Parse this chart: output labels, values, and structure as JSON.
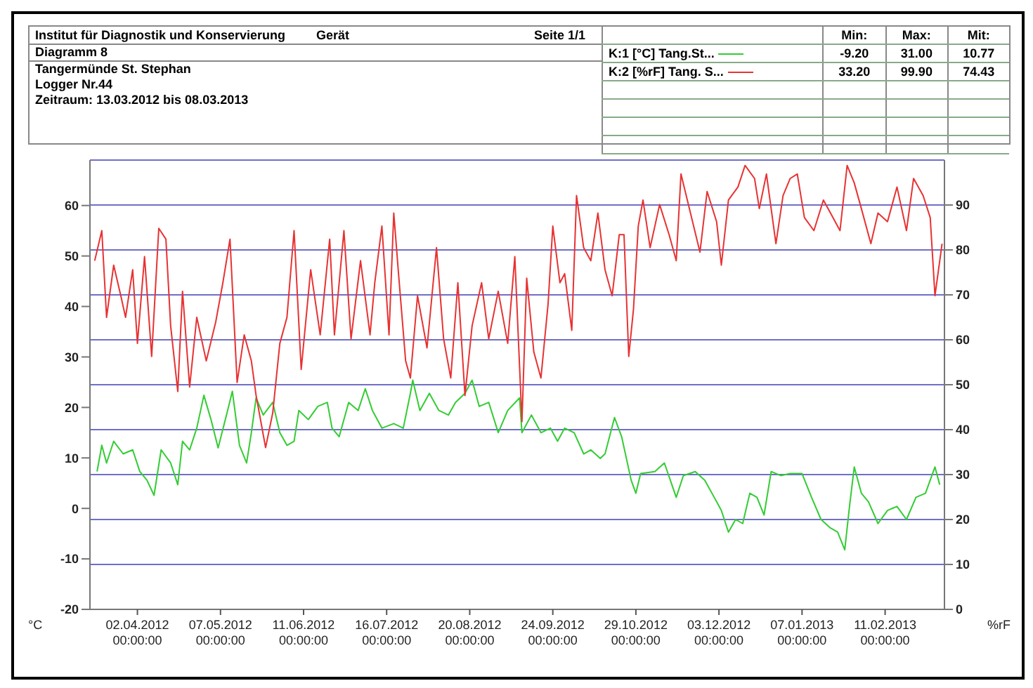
{
  "chart_data": {
    "type": "line",
    "title": "Diagramm 8",
    "annotations": [
      "Institut für Diagnostik und Konservierung",
      "Gerät",
      "Seite 1/1",
      "Tangermünde St. Stephan",
      "Logger Nr.44",
      "Zeitraum: 13.03.2012 bis 08.03.2013",
      "Min:",
      "Max:",
      "Mit:",
      "-9.20",
      "31.00",
      "10.77",
      "33.20",
      "99.90",
      "74.43"
    ],
    "ylabel": "°C",
    "y2label": "%rF",
    "xlim": [
      "2012-03-13",
      "2013-03-08"
    ],
    "xticks": [
      {
        "value": "2012-04-02",
        "label": "02.04.2012 00:00:00"
      },
      {
        "value": "2012-05-07",
        "label": "07.05.2012 00:00:00"
      },
      {
        "value": "2012-06-11",
        "label": "11.06.2012 00:00:00"
      },
      {
        "value": "2012-07-16",
        "label": "16.07.2012 00:00:00"
      },
      {
        "value": "2012-08-20",
        "label": "20.08.2012 00:00:00"
      },
      {
        "value": "2012-09-24",
        "label": "24.09.2012 00:00:00"
      },
      {
        "value": "2012-10-29",
        "label": "29.10.2012 00:00:00"
      },
      {
        "value": "2012-12-03",
        "label": "03.12.2012 00:00:00"
      },
      {
        "value": "2013-01-07",
        "label": "07.01.2013 00:00:00"
      },
      {
        "value": "2013-02-11",
        "label": "11.02.2013 00:00:00"
      }
    ],
    "ylim": [
      -20,
      69
    ],
    "yticks": [
      -20,
      -10,
      0,
      10,
      20,
      30,
      40,
      50,
      60
    ],
    "y2lim": [
      0,
      100
    ],
    "y2ticks": [
      0,
      10,
      20,
      30,
      40,
      50,
      60,
      70,
      80,
      90
    ],
    "grid": "y2",
    "legend": "top right",
    "series": [
      {
        "name": "K:1 [°C] Tang.St...",
        "color": "#33cc33",
        "x": [
          "2012-03-16",
          "2012-03-18",
          "2012-03-20",
          "2012-03-23",
          "2012-03-27",
          "2012-03-31",
          "2012-04-03",
          "2012-04-06",
          "2012-04-09",
          "2012-04-12",
          "2012-04-16",
          "2012-04-19",
          "2012-04-21",
          "2012-04-24",
          "2012-04-27",
          "2012-04-30",
          "2012-05-03",
          "2012-05-06",
          "2012-05-10",
          "2012-05-12",
          "2012-05-15",
          "2012-05-18",
          "2012-05-20",
          "2012-05-22",
          "2012-05-25",
          "2012-05-29",
          "2012-06-01",
          "2012-06-04",
          "2012-06-07",
          "2012-06-09",
          "2012-06-13",
          "2012-06-17",
          "2012-06-21",
          "2012-06-23",
          "2012-06-26",
          "2012-06-30",
          "2012-07-04",
          "2012-07-07",
          "2012-07-10",
          "2012-07-14",
          "2012-07-19",
          "2012-07-23",
          "2012-07-26",
          "2012-07-27",
          "2012-07-30",
          "2012-08-03",
          "2012-08-07",
          "2012-08-11",
          "2012-08-14",
          "2012-08-18",
          "2012-08-21",
          "2012-08-24",
          "2012-08-28",
          "2012-09-01",
          "2012-09-05",
          "2012-09-10",
          "2012-09-11",
          "2012-09-15",
          "2012-09-19",
          "2012-09-23",
          "2012-09-26",
          "2012-09-29",
          "2012-10-03",
          "2012-10-07",
          "2012-10-10",
          "2012-10-14",
          "2012-10-16",
          "2012-10-20",
          "2012-10-23",
          "2012-10-27",
          "2012-10-29",
          "2012-10-31",
          "2012-11-06",
          "2012-11-10",
          "2012-11-15",
          "2012-11-18",
          "2012-11-23",
          "2012-11-27",
          "2012-12-01",
          "2012-12-04",
          "2012-12-07",
          "2012-12-10",
          "2012-12-13",
          "2012-12-16",
          "2012-12-19",
          "2012-12-22",
          "2012-12-25",
          "2012-12-29",
          "2013-01-02",
          "2013-01-07",
          "2013-01-11",
          "2013-01-15",
          "2013-01-19",
          "2013-01-22",
          "2013-01-25",
          "2013-01-27",
          "2013-01-29",
          "2013-02-01",
          "2013-02-04",
          "2013-02-08",
          "2013-02-12",
          "2013-02-16",
          "2013-02-20",
          "2013-02-24",
          "2013-02-28",
          "2013-03-04",
          "2013-03-06"
        ],
        "values": [
          7.3,
          12.5,
          9,
          13.3,
          10.8,
          11.6,
          7.3,
          5.6,
          2.6,
          11.6,
          9,
          4.7,
          13.3,
          11.6,
          15.9,
          22.4,
          17.6,
          12,
          19.4,
          23.2,
          12.5,
          9,
          15,
          21.9,
          18.5,
          21,
          15,
          12.5,
          13.3,
          19.4,
          17.6,
          20.2,
          21,
          15.9,
          14.2,
          21,
          19.4,
          23.7,
          19.4,
          15.9,
          16.8,
          15.9,
          22.8,
          25.4,
          19.4,
          22.8,
          19.4,
          18.5,
          21,
          22.8,
          25.4,
          20.2,
          21,
          15,
          19.4,
          21.9,
          15,
          18.5,
          15,
          15.9,
          13.3,
          15.9,
          15,
          10.8,
          11.6,
          9.9,
          10.8,
          18,
          14.2,
          5.6,
          3,
          6.9,
          7.3,
          9,
          2.2,
          6.5,
          7.3,
          5.6,
          2.2,
          -0.4,
          -4.7,
          -2.2,
          -3,
          3,
          2.2,
          -1.3,
          7.3,
          6.5,
          6.9,
          6.9,
          2.2,
          -2.2,
          -3.9,
          -4.7,
          -8.2,
          0.4,
          8.2,
          3,
          1.3,
          -3,
          -0.4,
          0.4,
          -2.2,
          2.2,
          3,
          8.2,
          4.7
        ]
      },
      {
        "name": "K:2 [%rF] Tang. S...",
        "color": "#e83232",
        "axis": "y2",
        "x": [
          "2012-03-15",
          "2012-03-18",
          "2012-03-20",
          "2012-03-23",
          "2012-03-26",
          "2012-03-28",
          "2012-03-31",
          "2012-04-02",
          "2012-04-05",
          "2012-04-08",
          "2012-04-11",
          "2012-04-14",
          "2012-04-16",
          "2012-04-19",
          "2012-04-21",
          "2012-04-24",
          "2012-04-27",
          "2012-05-01",
          "2012-05-05",
          "2012-05-08",
          "2012-05-11",
          "2012-05-14",
          "2012-05-17",
          "2012-05-20",
          "2012-05-22",
          "2012-05-24",
          "2012-05-26",
          "2012-05-29",
          "2012-06-01",
          "2012-06-04",
          "2012-06-07",
          "2012-06-10",
          "2012-06-14",
          "2012-06-18",
          "2012-06-22",
          "2012-06-24",
          "2012-06-28",
          "2012-07-01",
          "2012-07-05",
          "2012-07-09",
          "2012-07-11",
          "2012-07-14",
          "2012-07-17",
          "2012-07-19",
          "2012-07-21",
          "2012-07-24",
          "2012-07-26",
          "2012-07-29",
          "2012-08-02",
          "2012-08-06",
          "2012-08-09",
          "2012-08-12",
          "2012-08-15",
          "2012-08-18",
          "2012-08-21",
          "2012-08-25",
          "2012-08-28",
          "2012-09-01",
          "2012-09-05",
          "2012-09-08",
          "2012-09-11",
          "2012-09-13",
          "2012-09-16",
          "2012-09-19",
          "2012-09-22",
          "2012-09-24",
          "2012-09-27",
          "2012-09-29",
          "2012-10-02",
          "2012-10-04",
          "2012-10-07",
          "2012-10-10",
          "2012-10-13",
          "2012-10-16",
          "2012-10-19",
          "2012-10-22",
          "2012-10-24",
          "2012-10-26",
          "2012-10-28",
          "2012-10-30",
          "2012-11-01",
          "2012-11-04",
          "2012-11-08",
          "2012-11-12",
          "2012-11-15",
          "2012-11-17",
          "2012-11-21",
          "2012-11-25",
          "2012-11-28",
          "2012-12-02",
          "2012-12-04",
          "2012-12-07",
          "2012-12-11",
          "2012-12-14",
          "2012-12-18",
          "2012-12-20",
          "2012-12-23",
          "2012-12-27",
          "2012-12-30",
          "2013-01-02",
          "2013-01-05",
          "2013-01-08",
          "2013-01-12",
          "2013-01-16",
          "2013-01-19",
          "2013-01-23",
          "2013-01-26",
          "2013-01-29",
          "2013-02-01",
          "2013-02-05",
          "2013-02-08",
          "2013-02-12",
          "2013-02-16",
          "2013-02-20",
          "2013-02-23",
          "2013-02-27",
          "2013-03-02",
          "2013-03-04",
          "2013-03-07"
        ],
        "values": [
          77.6,
          84.3,
          65,
          76.6,
          69.8,
          65,
          75.6,
          59.2,
          78.5,
          56.3,
          84.8,
          82.4,
          63.1,
          48.5,
          70.8,
          49.5,
          65,
          55.3,
          64,
          72.7,
          82.4,
          50.5,
          61.1,
          55.3,
          47.6,
          41.8,
          36,
          43.7,
          59.2,
          65,
          84.3,
          53.4,
          75.6,
          61.1,
          82.4,
          61.1,
          84.3,
          60.2,
          77.6,
          61.1,
          72.7,
          85.3,
          61.1,
          88.2,
          74.7,
          55.3,
          51.5,
          69.8,
          58.2,
          80.5,
          60.2,
          51.5,
          72.7,
          47.6,
          63.1,
          72.7,
          60.2,
          70.8,
          59.2,
          78.5,
          41.8,
          73.7,
          57.3,
          51.5,
          67.9,
          85.3,
          72.7,
          74.7,
          62.1,
          92.1,
          80.5,
          77.6,
          88.2,
          75.6,
          69.8,
          83.4,
          83.4,
          56.3,
          66.9,
          85.3,
          91.1,
          80.5,
          90.1,
          83.4,
          77.6,
          96.9,
          88.2,
          79.5,
          93,
          86.3,
          76.6,
          91.1,
          94,
          98.8,
          95.9,
          89.2,
          96.9,
          81.4,
          92.1,
          95.9,
          96.9,
          87.2,
          84.3,
          91.1,
          88.2,
          84.3,
          98.8,
          94.9,
          89.2,
          81.4,
          88.2,
          86.3,
          94,
          84.3,
          95.9,
          92.1,
          87.2,
          69.8,
          81.4
        ]
      }
    ]
  }
}
